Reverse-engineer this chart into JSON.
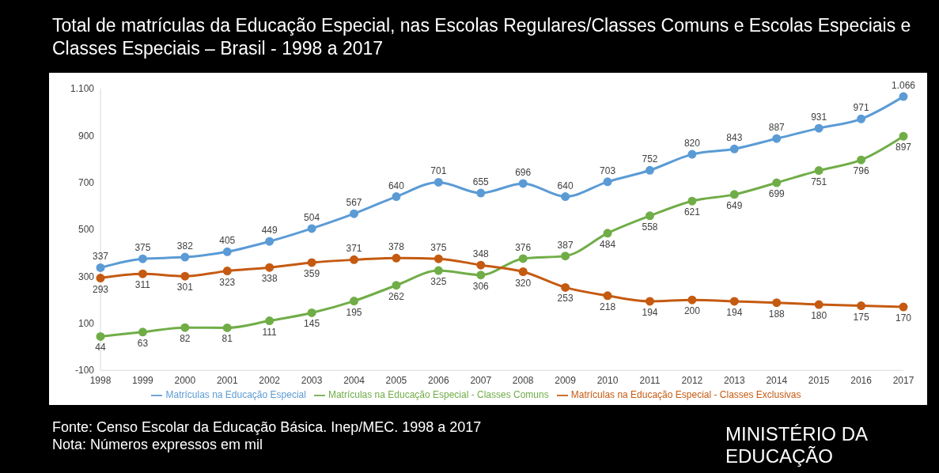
{
  "chart_data": {
    "type": "line",
    "title": "Total de matrículas da Educação Especial, nas Escolas Regulares/Classes Comuns e Escolas Especiais e Classes Especiais – Brasil - 1998 a 2017",
    "categories": [
      "1998",
      "1999",
      "2000",
      "2001",
      "2002",
      "2003",
      "2004",
      "2005",
      "2006",
      "2007",
      "2008",
      "2009",
      "2010",
      "2011",
      "2012",
      "2013",
      "2014",
      "2015",
      "2016",
      "2017"
    ],
    "series": [
      {
        "name": "Matrículas na Educação Especial",
        "color": "#5b9bd5",
        "values": [
          337,
          375,
          382,
          405,
          449,
          504,
          567,
          640,
          701,
          655,
          696,
          640,
          703,
          752,
          820,
          843,
          887,
          931,
          971,
          1066
        ],
        "value_labels": [
          "337",
          "375",
          "382",
          "405",
          "449",
          "504",
          "567",
          "640",
          "701",
          "655",
          "696",
          "640",
          "703",
          "752",
          "820",
          "843",
          "887",
          "931",
          "971",
          "1.066"
        ]
      },
      {
        "name": "Matrículas na Educação Especial - Classes Comuns",
        "color": "#70ad47",
        "values": [
          44,
          63,
          82,
          81,
          111,
          145,
          195,
          262,
          325,
          306,
          376,
          387,
          484,
          558,
          621,
          649,
          699,
          751,
          796,
          897
        ],
        "value_labels": [
          "44",
          "63",
          "82",
          "81",
          "111",
          "145",
          "195",
          "262",
          "325",
          "306",
          "376",
          "387",
          "484",
          "558",
          "621",
          "649",
          "699",
          "751",
          "796",
          "897"
        ]
      },
      {
        "name": "Matrículas na Educação Especial - Classes Exclusivas",
        "color": "#c55a11",
        "values": [
          293,
          311,
          301,
          323,
          338,
          359,
          371,
          378,
          375,
          348,
          320,
          253,
          218,
          194,
          200,
          194,
          188,
          180,
          175,
          170
        ],
        "value_labels": [
          "293",
          "311",
          "301",
          "323",
          "338",
          "359",
          "371",
          "378",
          "375",
          "348",
          "320",
          "253",
          "218",
          "194",
          "200",
          "194",
          "188",
          "180",
          "175",
          "170"
        ]
      }
    ],
    "ylim": [
      -100,
      1100
    ],
    "yticks": [
      -100,
      100,
      300,
      500,
      700,
      900,
      {
        "value": 1100,
        "label": "1.100"
      }
    ],
    "grid": false,
    "legend": "bottom",
    "marker": "circle",
    "line_style": "solid",
    "annotations": [
      "Fonte: Censo Escolar da Educação Básica. Inep/MEC. 1998 a 2017",
      "Nota: Números expressos em mil",
      "MINISTÉRIO DA EDUCAÇÃO"
    ]
  }
}
